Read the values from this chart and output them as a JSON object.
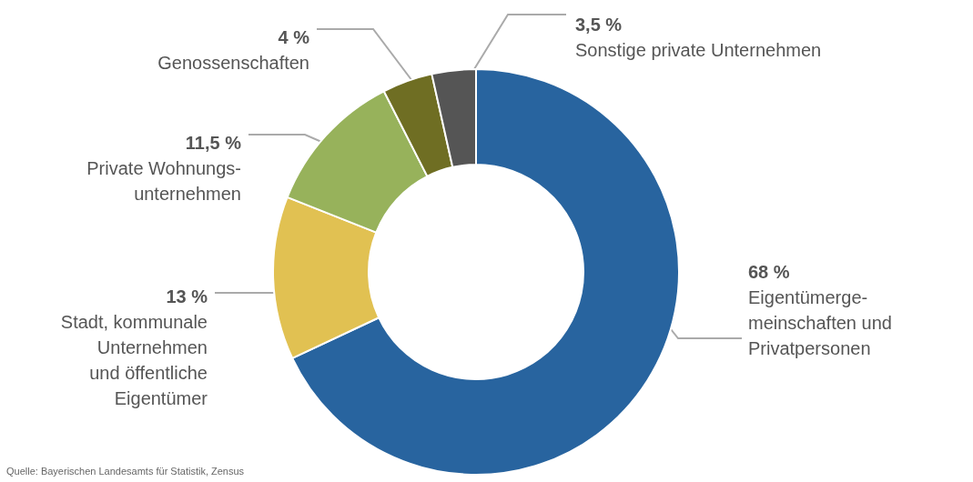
{
  "chart_data": {
    "type": "donut",
    "categories": [
      "Eigentümerge-\nmeinschaften und\nPrivatpersonen",
      "Stadt, kommunale\nUnternehmen\nund öffentliche\nEigentümer",
      "Private Wohnungs-\nunternehmen",
      "Genossenschaften",
      "Sonstige private Unternehmen"
    ],
    "values": [
      68,
      13,
      11.5,
      4,
      3.5
    ],
    "value_labels": [
      "68 %",
      "13 %",
      "11,5 %",
      "4 %",
      "3,5 %"
    ],
    "colors": [
      "#28649f",
      "#e1c152",
      "#97b25b",
      "#6f6e23",
      "#555555"
    ],
    "annotations": [
      "Quelle: Bayerischen Landesamts für Statistik, Zensus"
    ],
    "legend": false
  }
}
